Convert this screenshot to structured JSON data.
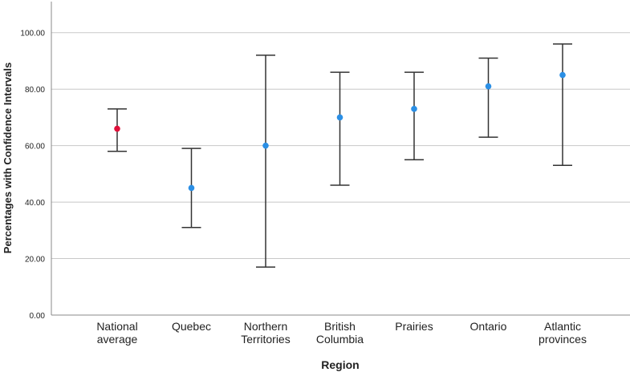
{
  "chart_data": {
    "type": "errorbar",
    "title": "",
    "xlabel": "Region",
    "ylabel": "Percentages with Confidence Intervals",
    "ylim": [
      0,
      111
    ],
    "yticks": [
      0,
      20,
      40,
      60,
      80,
      100
    ],
    "ytick_labels": [
      "0.00",
      "20.00",
      "40.00",
      "60.00",
      "80.00",
      "100.00"
    ],
    "grid": "horizontal",
    "categories": [
      [
        "National",
        "average"
      ],
      [
        "Quebec"
      ],
      [
        "Northern",
        "Territories"
      ],
      [
        "British",
        "Columbia"
      ],
      [
        "Prairies"
      ],
      [
        "Ontario"
      ],
      [
        "Atlantic",
        "provinces"
      ]
    ],
    "values": [
      66,
      45,
      60,
      70,
      73,
      81,
      85
    ],
    "lower": [
      58,
      31,
      17,
      46,
      55,
      63,
      53
    ],
    "upper": [
      73,
      59,
      92,
      86,
      86,
      91,
      96
    ],
    "point_colors": [
      "#e0103a",
      "#2b8fe5",
      "#2b8fe5",
      "#2b8fe5",
      "#2b8fe5",
      "#2b8fe5",
      "#2b8fe5"
    ],
    "colors": {
      "errorbar": "#333333",
      "grid": "#c8c8c8",
      "axis": "#888888"
    }
  }
}
